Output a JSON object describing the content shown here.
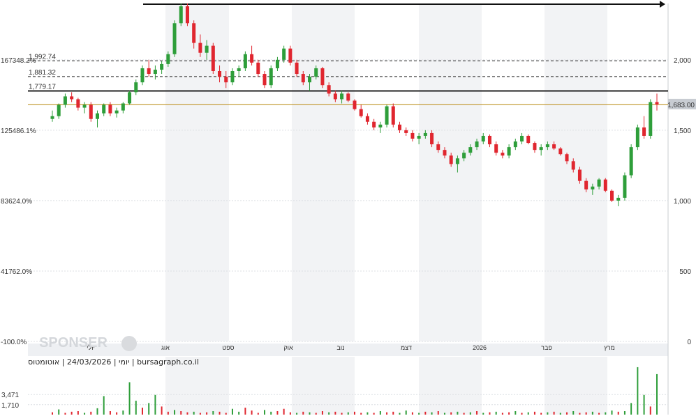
{
  "chart_data": {
    "type": "candlestick",
    "source_text": "יומי | 24/03/2026 | אוטומטוס | bursagraph.co.il",
    "watermark": "SPONSER",
    "y_axis_right": {
      "ticks": [
        0,
        500,
        1000,
        1500,
        2000
      ],
      "labels": [
        "0",
        "500",
        "1,000",
        "1,500",
        "2,000"
      ],
      "ylim": [
        0,
        2400
      ]
    },
    "y_axis_left": {
      "labels": [
        "-100.0%",
        "41762.0%",
        "83624.0%",
        "125486.1%",
        "167348.2%"
      ]
    },
    "x_axis": {
      "labels": [
        "יולי",
        "אוג",
        "ספט",
        "אוק",
        "נוב",
        "דצמ",
        "2026",
        "פבר",
        "מרץ"
      ]
    },
    "horizontal_levels": [
      {
        "value": 1992.74,
        "label": "1,992.74",
        "style": "dashed"
      },
      {
        "value": 1881.32,
        "label": "1,881.32",
        "style": "dashed"
      },
      {
        "value": 1779.17,
        "label": "1,779.17",
        "style": "solid"
      }
    ],
    "last_price": {
      "value": 1683.0,
      "label": "1,683.00"
    },
    "volume_axis": {
      "labels": [
        "3,471",
        "1,710"
      ]
    },
    "candles": [
      [
        1580,
        1640,
        1560,
        1600
      ],
      [
        1600,
        1690,
        1580,
        1680
      ],
      [
        1680,
        1760,
        1660,
        1740
      ],
      [
        1740,
        1770,
        1700,
        1720
      ],
      [
        1720,
        1730,
        1640,
        1660
      ],
      [
        1660,
        1700,
        1620,
        1680
      ],
      [
        1680,
        1700,
        1560,
        1580
      ],
      [
        1580,
        1640,
        1520,
        1620
      ],
      [
        1620,
        1690,
        1600,
        1680
      ],
      [
        1680,
        1700,
        1600,
        1620
      ],
      [
        1620,
        1660,
        1590,
        1640
      ],
      [
        1640,
        1700,
        1620,
        1690
      ],
      [
        1690,
        1780,
        1680,
        1770
      ],
      [
        1770,
        1860,
        1750,
        1840
      ],
      [
        1840,
        1960,
        1820,
        1940
      ],
      [
        1940,
        2000,
        1880,
        1900
      ],
      [
        1900,
        1960,
        1860,
        1930
      ],
      [
        1930,
        1990,
        1900,
        1970
      ],
      [
        1970,
        2060,
        1950,
        2040
      ],
      [
        2040,
        2280,
        2020,
        2260
      ],
      [
        2260,
        2400,
        2240,
        2380
      ],
      [
        2380,
        2400,
        2240,
        2260
      ],
      [
        2260,
        2280,
        2080,
        2120
      ],
      [
        2120,
        2180,
        2020,
        2050
      ],
      [
        2050,
        2140,
        2000,
        2100
      ],
      [
        2100,
        2120,
        1900,
        1920
      ],
      [
        1920,
        1960,
        1840,
        1880
      ],
      [
        1880,
        1920,
        1800,
        1840
      ],
      [
        1840,
        1940,
        1820,
        1920
      ],
      [
        1920,
        1960,
        1880,
        1940
      ],
      [
        1940,
        2060,
        1920,
        2040
      ],
      [
        2040,
        2100,
        1960,
        1980
      ],
      [
        1980,
        2000,
        1880,
        1900
      ],
      [
        1900,
        1920,
        1800,
        1820
      ],
      [
        1820,
        1960,
        1800,
        1940
      ],
      [
        1940,
        2020,
        1920,
        2000
      ],
      [
        2000,
        2100,
        1980,
        2080
      ],
      [
        2080,
        2100,
        1960,
        1980
      ],
      [
        1980,
        2000,
        1880,
        1900
      ],
      [
        1900,
        1920,
        1820,
        1840
      ],
      [
        1840,
        1900,
        1780,
        1880
      ],
      [
        1880,
        1960,
        1860,
        1940
      ],
      [
        1940,
        1950,
        1800,
        1820
      ],
      [
        1820,
        1840,
        1740,
        1760
      ],
      [
        1760,
        1780,
        1700,
        1720
      ],
      [
        1720,
        1780,
        1690,
        1760
      ],
      [
        1760,
        1770,
        1700,
        1710
      ],
      [
        1710,
        1720,
        1640,
        1650
      ],
      [
        1650,
        1680,
        1590,
        1600
      ],
      [
        1600,
        1620,
        1540,
        1560
      ],
      [
        1560,
        1580,
        1500,
        1520
      ],
      [
        1520,
        1560,
        1480,
        1540
      ],
      [
        1540,
        1680,
        1520,
        1670
      ],
      [
        1670,
        1690,
        1520,
        1540
      ],
      [
        1540,
        1560,
        1480,
        1500
      ],
      [
        1500,
        1520,
        1460,
        1480
      ],
      [
        1480,
        1500,
        1420,
        1440
      ],
      [
        1440,
        1480,
        1400,
        1460
      ],
      [
        1460,
        1500,
        1440,
        1480
      ],
      [
        1480,
        1500,
        1380,
        1400
      ],
      [
        1400,
        1420,
        1340,
        1360
      ],
      [
        1360,
        1380,
        1300,
        1320
      ],
      [
        1320,
        1340,
        1240,
        1260
      ],
      [
        1260,
        1320,
        1200,
        1300
      ],
      [
        1300,
        1360,
        1280,
        1340
      ],
      [
        1340,
        1400,
        1320,
        1380
      ],
      [
        1380,
        1440,
        1360,
        1420
      ],
      [
        1420,
        1480,
        1400,
        1460
      ],
      [
        1460,
        1470,
        1380,
        1400
      ],
      [
        1400,
        1420,
        1320,
        1340
      ],
      [
        1340,
        1360,
        1300,
        1320
      ],
      [
        1320,
        1400,
        1300,
        1380
      ],
      [
        1380,
        1440,
        1360,
        1420
      ],
      [
        1420,
        1480,
        1400,
        1460
      ],
      [
        1460,
        1470,
        1400,
        1410
      ],
      [
        1410,
        1420,
        1340,
        1360
      ],
      [
        1360,
        1400,
        1320,
        1380
      ],
      [
        1380,
        1420,
        1360,
        1400
      ],
      [
        1400,
        1420,
        1360,
        1370
      ],
      [
        1370,
        1380,
        1320,
        1330
      ],
      [
        1330,
        1340,
        1260,
        1280
      ],
      [
        1280,
        1300,
        1200,
        1220
      ],
      [
        1220,
        1240,
        1120,
        1140
      ],
      [
        1140,
        1160,
        1060,
        1080
      ],
      [
        1080,
        1120,
        1040,
        1100
      ],
      [
        1100,
        1160,
        1080,
        1150
      ],
      [
        1150,
        1160,
        1060,
        1070
      ],
      [
        1070,
        1080,
        990,
        1000
      ],
      [
        1000,
        1040,
        960,
        1020
      ],
      [
        1020,
        1200,
        1000,
        1180
      ],
      [
        1180,
        1400,
        1160,
        1380
      ],
      [
        1380,
        1540,
        1360,
        1520
      ],
      [
        1520,
        1600,
        1440,
        1460
      ],
      [
        1460,
        1720,
        1440,
        1700
      ],
      [
        1700,
        1760,
        1640,
        1683
      ]
    ],
    "volumes": [
      [
        0.4,
        "down"
      ],
      [
        0.9,
        "up"
      ],
      [
        0.3,
        "down"
      ],
      [
        0.5,
        "down"
      ],
      [
        0.6,
        "down"
      ],
      [
        0.3,
        "up"
      ],
      [
        0.5,
        "down"
      ],
      [
        1.1,
        "up"
      ],
      [
        3.2,
        "up"
      ],
      [
        0.6,
        "down"
      ],
      [
        0.4,
        "down"
      ],
      [
        0.7,
        "up"
      ],
      [
        5.6,
        "up"
      ],
      [
        2.4,
        "up"
      ],
      [
        1.2,
        "down"
      ],
      [
        2.0,
        "up"
      ],
      [
        3.4,
        "up"
      ],
      [
        1.4,
        "down"
      ],
      [
        0.5,
        "down"
      ],
      [
        0.8,
        "up"
      ],
      [
        0.6,
        "down"
      ],
      [
        0.4,
        "down"
      ],
      [
        0.5,
        "up"
      ],
      [
        0.3,
        "down"
      ],
      [
        0.4,
        "down"
      ],
      [
        0.6,
        "up"
      ],
      [
        0.5,
        "down"
      ],
      [
        0.3,
        "down"
      ],
      [
        1.0,
        "up"
      ],
      [
        0.5,
        "up"
      ],
      [
        1.2,
        "down"
      ],
      [
        0.7,
        "down"
      ],
      [
        0.3,
        "down"
      ],
      [
        0.8,
        "up"
      ],
      [
        0.5,
        "up"
      ],
      [
        0.6,
        "down"
      ],
      [
        1.0,
        "down"
      ],
      [
        0.4,
        "down"
      ],
      [
        0.3,
        "up"
      ],
      [
        0.5,
        "down"
      ],
      [
        0.4,
        "up"
      ],
      [
        0.3,
        "down"
      ],
      [
        0.6,
        "down"
      ],
      [
        0.4,
        "up"
      ],
      [
        0.5,
        "down"
      ],
      [
        0.3,
        "down"
      ],
      [
        0.4,
        "up"
      ],
      [
        0.5,
        "down"
      ],
      [
        0.3,
        "down"
      ],
      [
        0.4,
        "up"
      ],
      [
        0.3,
        "down"
      ],
      [
        0.6,
        "up"
      ],
      [
        0.4,
        "down"
      ],
      [
        0.5,
        "down"
      ],
      [
        0.3,
        "up"
      ],
      [
        0.7,
        "up"
      ],
      [
        0.4,
        "down"
      ],
      [
        0.3,
        "up"
      ],
      [
        0.5,
        "down"
      ],
      [
        0.4,
        "up"
      ],
      [
        0.6,
        "down"
      ],
      [
        0.3,
        "up"
      ],
      [
        0.4,
        "down"
      ],
      [
        0.5,
        "up"
      ],
      [
        0.3,
        "down"
      ],
      [
        0.4,
        "up"
      ],
      [
        0.6,
        "down"
      ],
      [
        0.3,
        "up"
      ],
      [
        0.4,
        "down"
      ],
      [
        0.5,
        "up"
      ],
      [
        0.3,
        "down"
      ],
      [
        0.4,
        "down"
      ],
      [
        0.6,
        "up"
      ],
      [
        0.3,
        "down"
      ],
      [
        0.4,
        "up"
      ],
      [
        0.5,
        "down"
      ],
      [
        0.3,
        "down"
      ],
      [
        0.4,
        "up"
      ],
      [
        0.5,
        "down"
      ],
      [
        0.3,
        "up"
      ],
      [
        0.4,
        "down"
      ],
      [
        0.6,
        "up"
      ],
      [
        0.3,
        "down"
      ],
      [
        0.4,
        "down"
      ],
      [
        0.5,
        "up"
      ],
      [
        0.3,
        "down"
      ],
      [
        0.4,
        "up"
      ],
      [
        0.7,
        "up"
      ],
      [
        0.5,
        "down"
      ],
      [
        0.6,
        "up"
      ],
      [
        2.0,
        "up"
      ],
      [
        8.2,
        "up"
      ],
      [
        3.4,
        "up"
      ],
      [
        1.4,
        "down"
      ],
      [
        7.0,
        "up"
      ]
    ]
  }
}
